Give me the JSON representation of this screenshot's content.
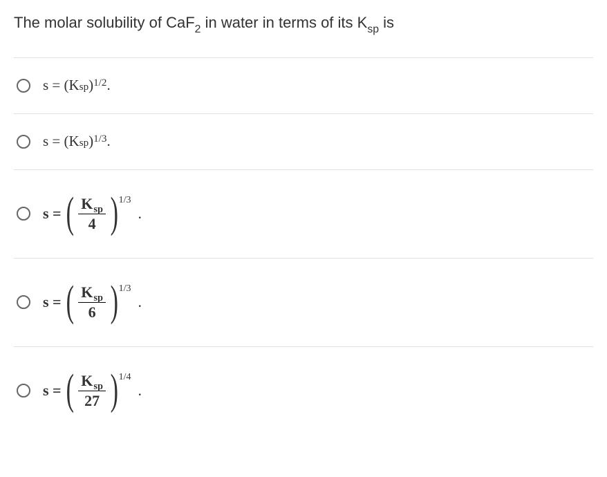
{
  "question": {
    "prefix": "The molar solubility of CaF",
    "caf_sub": "2",
    "middle": " in water in terms of its K",
    "ksp_sub": "sp",
    "suffix": " is"
  },
  "colors": {
    "text": "#333333",
    "divider": "#e0e0e0",
    "radio_border": "#666666",
    "background": "#ffffff"
  },
  "options": [
    {
      "type": "plain",
      "lead": "s = (K",
      "sub": "sp",
      "mid": ")",
      "exp": "1/2",
      "trail": "."
    },
    {
      "type": "plain",
      "lead": "s = (K",
      "sub": "sp",
      "mid": ")",
      "exp": "1/3",
      "trail": "."
    },
    {
      "type": "frac",
      "s_eq": "s =",
      "numerator_K": "K",
      "numerator_sub": "sp",
      "denominator": "4",
      "exponent": "1/3",
      "trail": "."
    },
    {
      "type": "frac",
      "s_eq": "s =",
      "numerator_K": "K",
      "numerator_sub": "sp",
      "denominator": "6",
      "exponent": "1/3",
      "trail": "."
    },
    {
      "type": "frac",
      "s_eq": "s =",
      "numerator_K": "K",
      "numerator_sub": "sp",
      "denominator": "27",
      "exponent": "1/4",
      "trail": "."
    }
  ]
}
